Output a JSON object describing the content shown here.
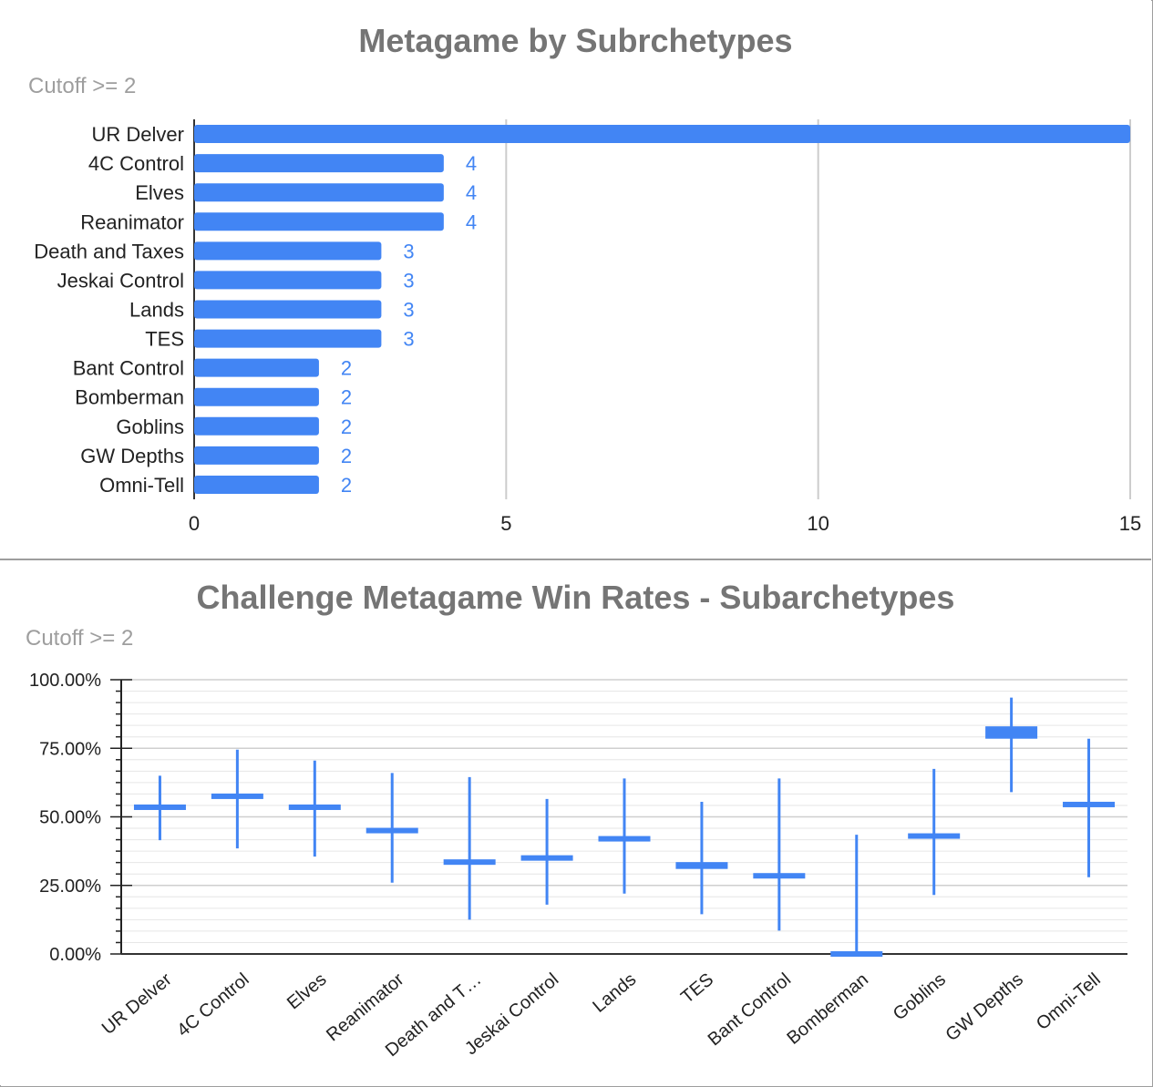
{
  "chart_data": [
    {
      "type": "bar",
      "orientation": "horizontal",
      "title": "Metagame by Subrchetypes",
      "subtitle": "Cutoff >=  2",
      "categories": [
        "UR Delver",
        "4C Control",
        "Elves",
        "Reanimator",
        "Death and Taxes",
        "Jeskai Control",
        "Lands",
        "TES",
        "Bant Control",
        "Bomberman",
        "Goblins",
        "GW Depths",
        "Omni-Tell"
      ],
      "values": [
        15,
        4,
        4,
        4,
        3,
        3,
        3,
        3,
        2,
        2,
        2,
        2,
        2
      ],
      "data_labels": [
        "",
        "4",
        "4",
        "4",
        "3",
        "3",
        "3",
        "3",
        "2",
        "2",
        "2",
        "2",
        "2"
      ],
      "xlim": [
        0,
        15
      ],
      "x_ticks": [
        "0",
        "5",
        "10",
        "15"
      ],
      "grid": true,
      "color": "#4285f4"
    },
    {
      "type": "candlestick",
      "title": "Challenge Metagame Win Rates - Subarchetypes",
      "subtitle": "Cutoff >= 2",
      "categories": [
        "UR Delver",
        "4C Control",
        "Elves",
        "Reanimator",
        "Death and T…",
        "Jeskai Control",
        "Lands",
        "TES",
        "Bant Control",
        "Bomberman",
        "Goblins",
        "GW Depths",
        "Omni-Tell"
      ],
      "low": [
        41.5,
        38.5,
        35.5,
        26.0,
        12.5,
        18.0,
        22.0,
        14.5,
        8.5,
        0.0,
        21.5,
        59.0,
        28.0
      ],
      "open": [
        54.0,
        57.5,
        53.5,
        45.0,
        33.5,
        35.0,
        42.0,
        33.0,
        28.5,
        0.0,
        43.0,
        82.5,
        54.5
      ],
      "close": [
        53.0,
        57.5,
        53.5,
        45.0,
        33.5,
        35.0,
        41.5,
        31.5,
        28.5,
        0.0,
        43.0,
        79.0,
        54.5
      ],
      "high": [
        65.0,
        74.5,
        70.5,
        66.0,
        64.5,
        56.5,
        64.0,
        55.5,
        64.0,
        43.5,
        67.5,
        93.5,
        78.5
      ],
      "ylim": [
        0,
        100
      ],
      "y_ticks": [
        "0.00%",
        "25.00%",
        "50.00%",
        "75.00%",
        "100.00%"
      ],
      "grid": true,
      "color": "#4285f4"
    }
  ]
}
